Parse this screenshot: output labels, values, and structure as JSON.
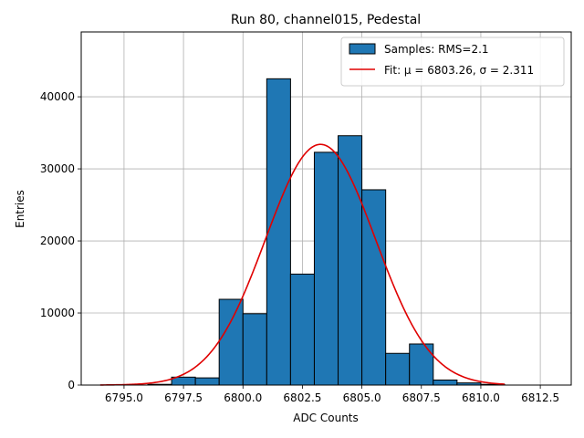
{
  "chart_data": {
    "type": "bar",
    "title": "Run 80, channel015, Pedestal",
    "xlabel": "ADC Counts",
    "ylabel": "Entries",
    "xlim": [
      6793.2,
      6813.8
    ],
    "ylim": [
      0,
      49000
    ],
    "xticks": [
      6795.0,
      6797.5,
      6800.0,
      6802.5,
      6805.0,
      6807.5,
      6810.0,
      6812.5
    ],
    "xtick_labels": [
      "6795.0",
      "6797.5",
      "6800.0",
      "6802.5",
      "6805.0",
      "6807.5",
      "6810.0",
      "6812.5"
    ],
    "yticks": [
      0,
      10000,
      20000,
      30000,
      40000
    ],
    "ytick_labels": [
      "0",
      "10000",
      "20000",
      "30000",
      "40000"
    ],
    "grid": true,
    "legend_position": "top-right",
    "histogram": {
      "name": "Samples: RMS=2.1",
      "color": "#1f77b4",
      "edge_color": "#000000",
      "bins": [
        {
          "x0": 6796,
          "x1": 6797,
          "value": 100
        },
        {
          "x0": 6797,
          "x1": 6798,
          "value": 1100
        },
        {
          "x0": 6798,
          "x1": 6799,
          "value": 1000
        },
        {
          "x0": 6799,
          "x1": 6800,
          "value": 11900
        },
        {
          "x0": 6800,
          "x1": 6801,
          "value": 9900
        },
        {
          "x0": 6801,
          "x1": 6802,
          "value": 42500
        },
        {
          "x0": 6802,
          "x1": 6803,
          "value": 15400
        },
        {
          "x0": 6803,
          "x1": 6804,
          "value": 32300
        },
        {
          "x0": 6804,
          "x1": 6805,
          "value": 34600
        },
        {
          "x0": 6805,
          "x1": 6806,
          "value": 27100
        },
        {
          "x0": 6806,
          "x1": 6807,
          "value": 4400
        },
        {
          "x0": 6807,
          "x1": 6808,
          "value": 5700
        },
        {
          "x0": 6808,
          "x1": 6809,
          "value": 700
        },
        {
          "x0": 6809,
          "x1": 6810,
          "value": 300
        },
        {
          "x0": 6810,
          "x1": 6811,
          "value": 100
        }
      ]
    },
    "fit": {
      "name": "Fit: μ = 6803.26, σ = 2.311",
      "color": "#e00000",
      "mu": 6803.26,
      "sigma": 2.311,
      "amplitude": 33400,
      "x_range": [
        6794,
        6811
      ]
    }
  }
}
